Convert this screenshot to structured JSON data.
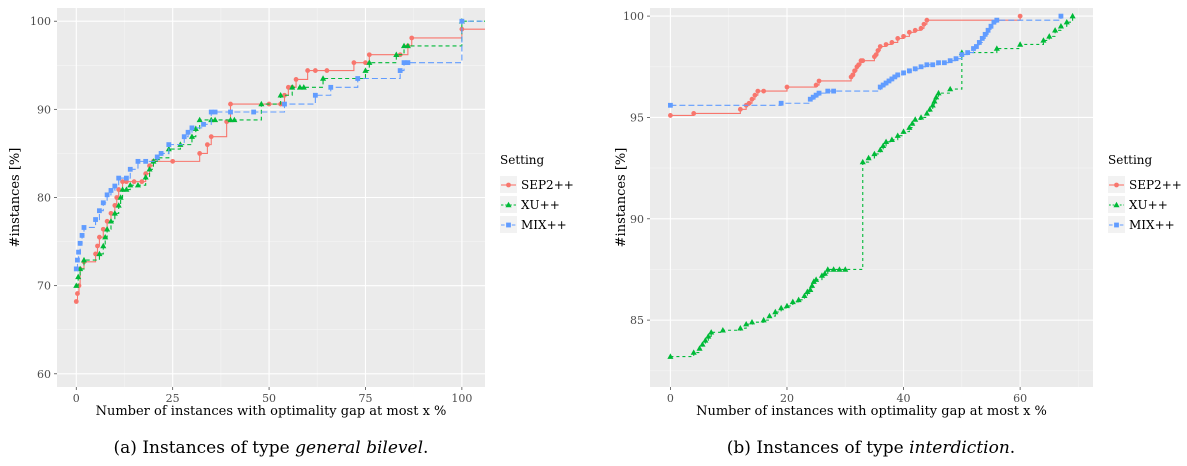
{
  "colors": {
    "SEP2++": "#F8766D",
    "XU++": "#00BA38",
    "MIX++": "#619CFF",
    "panel": "#EBEBEB",
    "grid": "#ffffff"
  },
  "chart_data": [
    {
      "type": "line",
      "step": true,
      "caption_prefix": "(a) Instances of type ",
      "caption_italic": "general bilevel",
      "caption_suffix": ".",
      "xlabel": "Number of instances with optimality gap at most x %",
      "ylabel": "#instances [%]",
      "xlim": [
        -5,
        106
      ],
      "ylim": [
        58.5,
        101.5
      ],
      "xticks": [
        "0",
        "25",
        "50",
        "75",
        "100"
      ],
      "yticks": [
        "60",
        "70",
        "80",
        "90",
        "100"
      ],
      "legend_title": "Setting",
      "legend_placement": "right",
      "series": [
        {
          "name": "SEP2++",
          "marker": "circle",
          "dash": "",
          "x": [
            0,
            0.3,
            0.7,
            1,
            2,
            5,
            5.5,
            6,
            7,
            8,
            9,
            10,
            10.5,
            11,
            12,
            13,
            15,
            17,
            18,
            19,
            20,
            25,
            32,
            34,
            35,
            39,
            40,
            50,
            53,
            54,
            55,
            56,
            57,
            60,
            62,
            65,
            72,
            75,
            76,
            84,
            86,
            87,
            100
          ],
          "y": [
            68.2,
            69.1,
            70.0,
            71.9,
            72.7,
            73.6,
            74.5,
            75.5,
            76.4,
            77.3,
            78.2,
            79.1,
            80.0,
            80.9,
            81.8,
            81.8,
            81.8,
            81.8,
            82.7,
            83.6,
            84.1,
            84.1,
            85.0,
            86.0,
            86.9,
            88.6,
            90.6,
            90.6,
            90.6,
            91.6,
            92.5,
            92.5,
            93.4,
            94.4,
            94.4,
            94.4,
            95.3,
            95.3,
            96.2,
            96.2,
            97.2,
            98.1,
            99.1
          ]
        },
        {
          "name": "XU++",
          "marker": "triangle",
          "dash": "4,3",
          "x": [
            0,
            0.5,
            1,
            2,
            6,
            7,
            7.5,
            8,
            9,
            10,
            11,
            11.5,
            12,
            13,
            14,
            16,
            18,
            19,
            20,
            21,
            24,
            27,
            30,
            31,
            32,
            35,
            36,
            40,
            41,
            48,
            53,
            56,
            58,
            59,
            64,
            75,
            76,
            83,
            85,
            86,
            100
          ],
          "y": [
            70.0,
            71.0,
            71.9,
            72.9,
            73.6,
            74.5,
            75.5,
            76.4,
            77.3,
            78.2,
            79.1,
            80.0,
            80.9,
            80.9,
            81.4,
            81.4,
            82.3,
            83.2,
            84.1,
            84.5,
            85.5,
            86.0,
            86.9,
            87.8,
            88.8,
            88.8,
            88.8,
            88.8,
            88.8,
            90.6,
            91.6,
            92.5,
            92.5,
            92.5,
            93.5,
            94.4,
            95.3,
            96.2,
            97.2,
            97.2,
            100.0
          ]
        },
        {
          "name": "MIX++",
          "marker": "square",
          "dash": "6,3",
          "x": [
            0,
            0.3,
            0.6,
            1,
            1.5,
            2,
            5,
            6,
            7,
            8,
            9,
            10,
            11,
            13,
            14,
            16,
            18,
            21,
            22,
            24,
            28,
            29,
            30,
            33,
            35,
            36,
            40,
            46,
            54,
            62,
            66,
            73,
            84,
            85,
            86,
            100
          ],
          "y": [
            71.9,
            72.9,
            73.8,
            74.8,
            75.7,
            76.6,
            77.5,
            78.5,
            79.4,
            80.3,
            80.8,
            81.3,
            82.2,
            82.2,
            83.2,
            84.1,
            84.1,
            84.6,
            85.0,
            86.0,
            86.9,
            87.4,
            87.9,
            88.3,
            89.7,
            89.7,
            89.7,
            89.7,
            90.6,
            91.6,
            92.5,
            93.5,
            94.4,
            95.3,
            95.3,
            100.0
          ]
        }
      ]
    },
    {
      "type": "line",
      "step": true,
      "caption_prefix": "(b) Instances of type ",
      "caption_italic": "interdiction",
      "caption_suffix": ".",
      "xlabel": "Number of instances with optimality gap at most x %",
      "ylabel": "#instances [%]",
      "xlim": [
        -3.5,
        72.5
      ],
      "ylim": [
        81.7,
        100.4
      ],
      "xticks": [
        "0",
        "20",
        "40",
        "60"
      ],
      "yticks": [
        "85",
        "90",
        "95",
        "100"
      ],
      "legend_title": "Setting",
      "legend_placement": "right",
      "series": [
        {
          "name": "SEP2++",
          "marker": "circle",
          "dash": "",
          "x": [
            0,
            4,
            12,
            13,
            13.5,
            14,
            14.5,
            15,
            16,
            20,
            25,
            25.5,
            31,
            31.3,
            31.6,
            32,
            32.3,
            32.7,
            33,
            35,
            35.3,
            35.6,
            36,
            37,
            38,
            39,
            40,
            41,
            42,
            43,
            43.5,
            44,
            60
          ],
          "y": [
            95.1,
            95.2,
            95.4,
            95.6,
            95.7,
            95.9,
            96.1,
            96.3,
            96.3,
            96.5,
            96.6,
            96.8,
            97.0,
            97.1,
            97.3,
            97.5,
            97.6,
            97.8,
            97.8,
            98.0,
            98.1,
            98.3,
            98.5,
            98.6,
            98.7,
            98.9,
            99.0,
            99.2,
            99.3,
            99.4,
            99.6,
            99.8,
            100.0
          ]
        },
        {
          "name": "XU++",
          "marker": "triangle",
          "dash": "3,3",
          "x": [
            0,
            4,
            5,
            5.5,
            6,
            6.5,
            7,
            9,
            12,
            13,
            14,
            16,
            17,
            18,
            19,
            20,
            21,
            22,
            23,
            23.5,
            24,
            24.3,
            24.6,
            25,
            26,
            26.5,
            27,
            28,
            29,
            30,
            33,
            34,
            35,
            36,
            36.5,
            37,
            38,
            39,
            40,
            41,
            41.5,
            42,
            43,
            44,
            44.5,
            45,
            45.3,
            45.6,
            46,
            48,
            50,
            56,
            60,
            64,
            65,
            66,
            67,
            68,
            69
          ],
          "y": [
            83.2,
            83.4,
            83.6,
            83.8,
            84.0,
            84.2,
            84.4,
            84.5,
            84.6,
            84.8,
            84.9,
            85.0,
            85.2,
            85.4,
            85.6,
            85.7,
            85.9,
            86.0,
            86.2,
            86.4,
            86.5,
            86.7,
            86.9,
            87.0,
            87.2,
            87.3,
            87.5,
            87.5,
            87.5,
            87.5,
            92.8,
            93.0,
            93.2,
            93.4,
            93.6,
            93.8,
            93.9,
            94.1,
            94.3,
            94.5,
            94.7,
            94.9,
            95.0,
            95.2,
            95.4,
            95.6,
            95.8,
            96.0,
            96.2,
            96.4,
            98.2,
            98.4,
            98.6,
            98.8,
            99.0,
            99.3,
            99.5,
            99.7,
            100.0
          ]
        },
        {
          "name": "MIX++",
          "marker": "square",
          "dash": "6,3",
          "x": [
            0,
            19,
            24,
            24.5,
            25,
            25.5,
            27,
            28,
            36,
            36.5,
            37,
            37.5,
            38,
            38.5,
            39,
            40,
            41,
            42,
            43,
            44,
            45,
            46,
            47,
            48,
            49,
            50,
            51,
            52,
            52.5,
            53,
            53.5,
            54,
            54.5,
            55,
            55.5,
            56,
            67
          ],
          "y": [
            95.6,
            95.7,
            95.9,
            96.0,
            96.1,
            96.2,
            96.3,
            96.3,
            96.5,
            96.6,
            96.7,
            96.8,
            96.9,
            97.0,
            97.1,
            97.2,
            97.3,
            97.4,
            97.5,
            97.6,
            97.6,
            97.7,
            97.7,
            97.8,
            97.9,
            98.1,
            98.2,
            98.4,
            98.5,
            98.7,
            98.9,
            99.1,
            99.3,
            99.5,
            99.7,
            99.8,
            100.0
          ]
        }
      ]
    }
  ]
}
